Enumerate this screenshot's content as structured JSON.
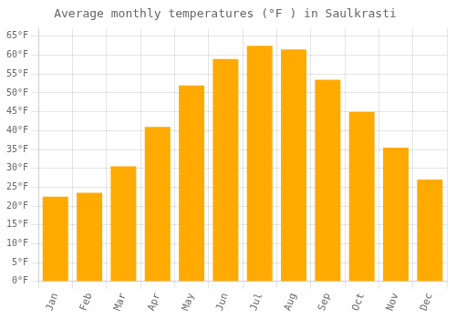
{
  "chart_data": {
    "type": "bar",
    "title": "Average monthly temperatures (°F ) in Saulkrasti",
    "categories": [
      "Jan",
      "Feb",
      "Mar",
      "Apr",
      "May",
      "Jun",
      "Jul",
      "Aug",
      "Sep",
      "Oct",
      "Nov",
      "Dec"
    ],
    "values": [
      22.5,
      23.5,
      30.5,
      41.0,
      52.0,
      59.0,
      62.5,
      61.5,
      53.5,
      45.0,
      35.5,
      27.0
    ],
    "color": "#FFAA00",
    "ylim": [
      0,
      67
    ],
    "yticks": [
      {
        "value": 0,
        "label": "0°F"
      },
      {
        "value": 5,
        "label": "5°F"
      },
      {
        "value": 10,
        "label": "10°F"
      },
      {
        "value": 15,
        "label": "15°F"
      },
      {
        "value": 20,
        "label": "20°F"
      },
      {
        "value": 25,
        "label": "25°F"
      },
      {
        "value": 30,
        "label": "30°F"
      },
      {
        "value": 35,
        "label": "35°F"
      },
      {
        "value": 40,
        "label": "40°F"
      },
      {
        "value": 45,
        "label": "45°F"
      },
      {
        "value": 50,
        "label": "50°F"
      },
      {
        "value": 55,
        "label": "55°F"
      },
      {
        "value": 60,
        "label": "60°F"
      },
      {
        "value": 65,
        "label": "65°F"
      }
    ],
    "grid": true
  }
}
